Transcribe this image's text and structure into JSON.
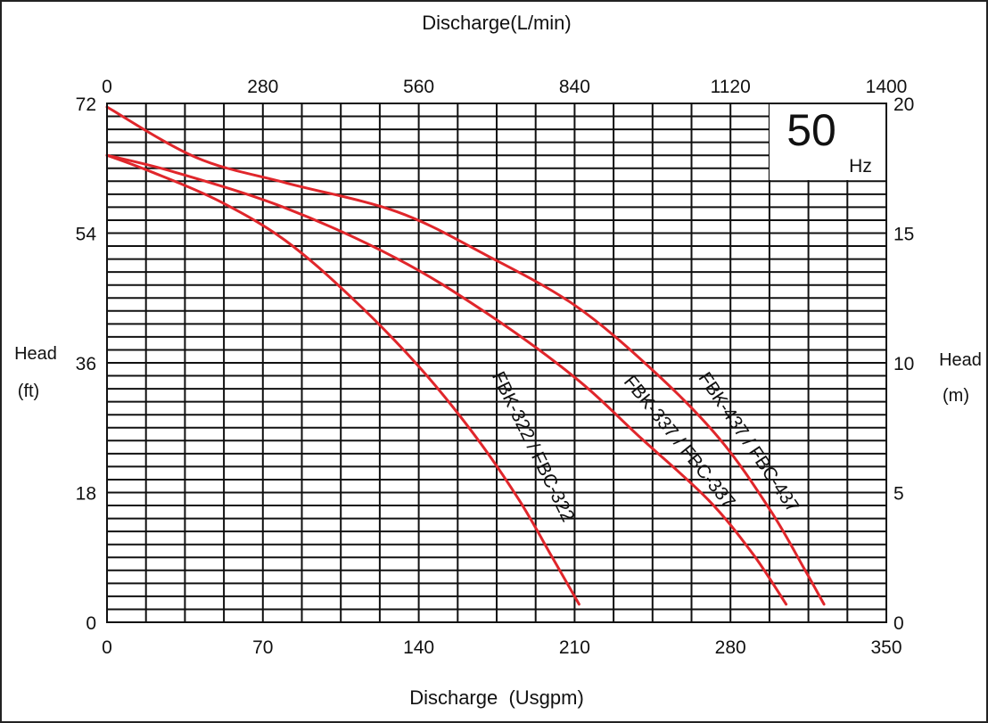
{
  "chart_data": {
    "type": "line",
    "title": "",
    "top_xlabel": "Discharge(L/min)",
    "bottom_xlabel": "Discharge  (Usgpm)",
    "left_ylabel": [
      "Head",
      "(ft)"
    ],
    "right_ylabel": [
      "Head",
      "(m)"
    ],
    "frequency": {
      "value": "50",
      "unit": "Hz"
    },
    "x_bottom_ticks": [
      "0",
      "70",
      "140",
      "210",
      "280",
      "350"
    ],
    "x_top_ticks": [
      "0",
      "280",
      "560",
      "840",
      "1120",
      "1400"
    ],
    "y_left_ticks": [
      "0",
      "18",
      "36",
      "54",
      "72"
    ],
    "y_right_ticks": [
      "0",
      "5",
      "10",
      "15",
      "20"
    ],
    "xlim_usgpm": [
      0,
      350
    ],
    "ylim_ft": [
      0,
      72
    ],
    "grid": true,
    "line_color": "#e0262b",
    "series": [
      {
        "name": "FBK-322 / FBC-322",
        "points_usgpm_ft": [
          [
            0,
            64.8
          ],
          [
            20,
            62.5
          ],
          [
            50,
            58.5
          ],
          [
            80,
            53
          ],
          [
            110,
            45
          ],
          [
            140,
            35.5
          ],
          [
            165,
            26
          ],
          [
            185,
            17
          ],
          [
            200,
            9
          ],
          [
            212,
            2.5
          ]
        ]
      },
      {
        "name": "FBK-337 / FBC-337",
        "points_usgpm_ft": [
          [
            0,
            64.8
          ],
          [
            30,
            62.5
          ],
          [
            80,
            57.5
          ],
          [
            130,
            50.5
          ],
          [
            170,
            43
          ],
          [
            210,
            34
          ],
          [
            240,
            25.5
          ],
          [
            270,
            17
          ],
          [
            290,
            9.5
          ],
          [
            305,
            2.5
          ]
        ]
      },
      {
        "name": "FBK-437 / FBC-437",
        "points_usgpm_ft": [
          [
            0,
            71.5
          ],
          [
            40,
            64.5
          ],
          [
            80,
            61
          ],
          [
            130,
            57
          ],
          [
            170,
            51
          ],
          [
            210,
            44
          ],
          [
            245,
            35
          ],
          [
            275,
            25.5
          ],
          [
            298,
            15.5
          ],
          [
            313,
            7.5
          ],
          [
            322,
            2.5
          ]
        ]
      }
    ]
  }
}
